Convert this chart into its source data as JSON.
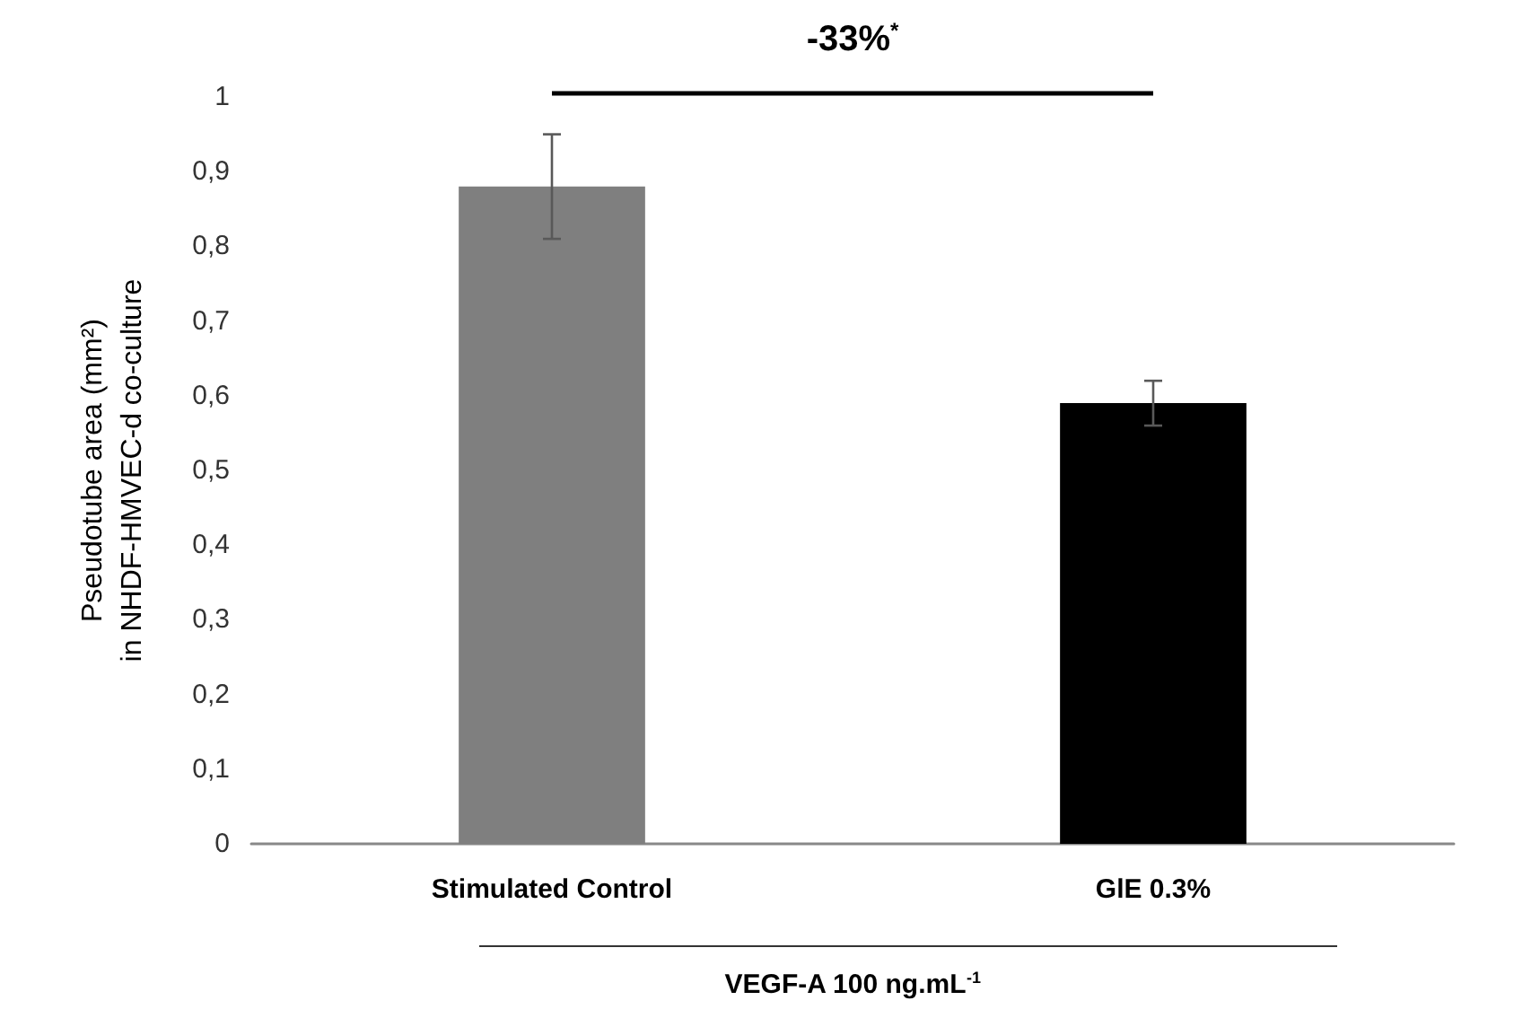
{
  "chart_data": {
    "type": "bar",
    "categories": [
      "Stimulated Control",
      "GlE 0.3%"
    ],
    "series": [
      {
        "values": [
          0.88,
          0.59
        ],
        "colors": [
          "#7f7f7f",
          "#000000"
        ],
        "errors": [
          0.07,
          0.03
        ]
      }
    ],
    "ylabel": "Pseudotube area (mm²)\nin NHDF-HMVEC-d co-culture",
    "xlabel": "VEGF-A 100 ng.mL$^{-1}$",
    "annotations": [
      "-33%$^{*}$"
    ],
    "ylim": [
      0,
      1
    ],
    "yticks": [
      {
        "value": 0,
        "label": "0"
      },
      {
        "value": 0.1,
        "label": "0,1"
      },
      {
        "value": 0.2,
        "label": "0,2"
      },
      {
        "value": 0.3,
        "label": "0,3"
      },
      {
        "value": 0.4,
        "label": "0,4"
      },
      {
        "value": 0.5,
        "label": "0,5"
      },
      {
        "value": 0.6,
        "label": "0,6"
      },
      {
        "value": 0.7,
        "label": "0,7"
      },
      {
        "value": 0.8,
        "label": "0,8"
      },
      {
        "value": 0.9,
        "label": "0,9"
      },
      {
        "value": 1,
        "label": "1"
      }
    ]
  }
}
